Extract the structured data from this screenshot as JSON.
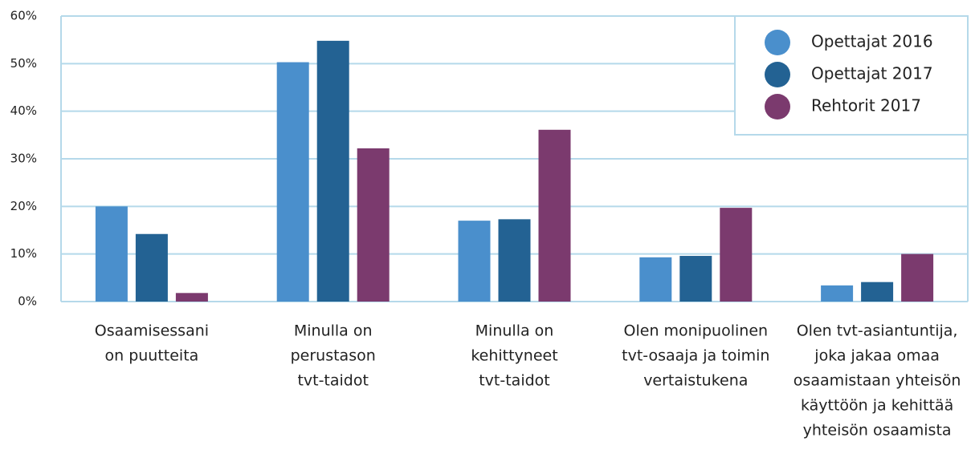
{
  "chart_data": {
    "type": "bar",
    "categories": [
      [
        "Osaamisessani",
        "on puutteita"
      ],
      [
        "Minulla on",
        "perustason",
        "tvt-taidot"
      ],
      [
        "Minulla on",
        "kehittyneet",
        "tvt-taidot"
      ],
      [
        "Olen monipuolinen",
        "tvt-osaaja ja toimin",
        "vertaistukena"
      ],
      [
        "Olen tvt-asiantuntija,",
        "joka jakaa omaa",
        "osaamistaan yhteisön",
        "käyttöön ja kehittää",
        "yhteisön osaamista"
      ]
    ],
    "series": [
      {
        "name": "Opettajat 2016",
        "color": "#4a8fcc",
        "values": [
          20,
          50.3,
          17,
          9.3,
          3.4
        ]
      },
      {
        "name": "Opettajat 2017",
        "color": "#236293",
        "values": [
          14.2,
          54.8,
          17.3,
          9.6,
          4.1
        ]
      },
      {
        "name": "Rehtorit 2017",
        "color": "#7b3a6e",
        "values": [
          1.8,
          32.2,
          36.1,
          19.7,
          10
        ]
      }
    ],
    "ylim": [
      0,
      60
    ],
    "yticks": [
      {
        "value": 0,
        "label": "0%"
      },
      {
        "value": 10,
        "label": "10%"
      },
      {
        "value": 20,
        "label": "20%"
      },
      {
        "value": 30,
        "label": "30%"
      },
      {
        "value": 40,
        "label": "40%"
      },
      {
        "value": 50,
        "label": "50%"
      },
      {
        "value": 60,
        "label": "60%"
      }
    ],
    "grid": true,
    "legend": "top-right"
  }
}
